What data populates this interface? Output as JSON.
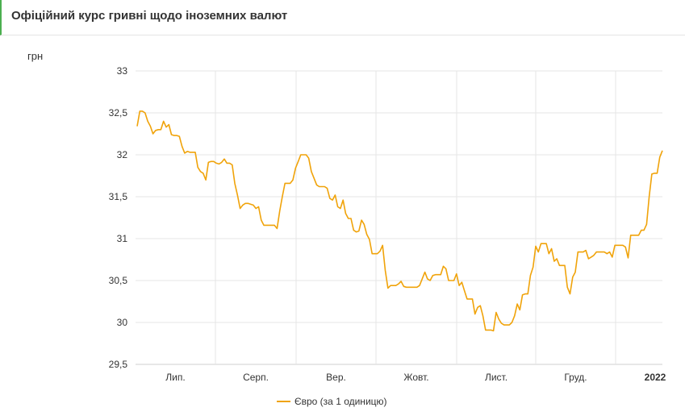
{
  "header": {
    "title": "Офіційний курс гривні щодо іноземних валют"
  },
  "chart_data": {
    "type": "line",
    "y_unit_label": "грн",
    "ylim": [
      29.5,
      33
    ],
    "y_ticks": [
      "29,5",
      "30",
      "30,5",
      "31",
      "31,5",
      "32",
      "32,5",
      "33"
    ],
    "x_ticks": [
      {
        "label": "Лип.",
        "bold": false
      },
      {
        "label": "Серп.",
        "bold": false
      },
      {
        "label": "Вер.",
        "bold": false
      },
      {
        "label": "Жовт.",
        "bold": false
      },
      {
        "label": "Лист.",
        "bold": false
      },
      {
        "label": "Груд.",
        "bold": false
      },
      {
        "label": "2022",
        "bold": true
      }
    ],
    "grid": true,
    "legend_position": "bottom",
    "series": [
      {
        "name": "Євро (за 1 одиницю)",
        "color": "#f0a30a",
        "values": [
          32.34,
          32.52,
          32.52,
          32.5,
          32.4,
          32.34,
          32.25,
          32.29,
          32.3,
          32.3,
          32.4,
          32.33,
          32.36,
          32.24,
          32.23,
          32.23,
          32.22,
          32.1,
          32.02,
          32.04,
          32.03,
          32.03,
          32.03,
          31.85,
          31.8,
          31.78,
          31.7,
          31.91,
          31.92,
          31.92,
          31.9,
          31.89,
          31.91,
          31.95,
          31.9,
          31.9,
          31.88,
          31.66,
          31.52,
          31.36,
          31.4,
          31.42,
          31.42,
          31.41,
          31.4,
          31.36,
          31.38,
          31.22,
          31.16,
          31.16,
          31.16,
          31.16,
          31.16,
          31.12,
          31.33,
          31.5,
          31.66,
          31.66,
          31.66,
          31.7,
          31.84,
          31.92,
          32.0,
          32.0,
          32.0,
          31.96,
          31.8,
          31.72,
          31.64,
          31.62,
          31.62,
          31.62,
          31.6,
          31.48,
          31.46,
          31.52,
          31.38,
          31.36,
          31.46,
          31.3,
          31.24,
          31.24,
          31.1,
          31.08,
          31.09,
          31.22,
          31.17,
          31.05,
          30.99,
          30.82,
          30.82,
          30.82,
          30.85,
          30.92,
          30.62,
          30.41,
          30.44,
          30.44,
          30.44,
          30.46,
          30.49,
          30.43,
          30.42,
          30.42,
          30.42,
          30.42,
          30.42,
          30.44,
          30.52,
          30.6,
          30.52,
          30.5,
          30.56,
          30.57,
          30.57,
          30.57,
          30.67,
          30.64,
          30.5,
          30.5,
          30.5,
          30.58,
          30.44,
          30.48,
          30.38,
          30.28,
          30.28,
          30.28,
          30.1,
          30.18,
          30.2,
          30.08,
          29.91,
          29.91,
          29.91,
          29.9,
          30.12,
          30.04,
          29.99,
          29.97,
          29.97,
          29.97,
          30.0,
          30.08,
          30.22,
          30.15,
          30.33,
          30.34,
          30.34,
          30.56,
          30.66,
          30.91,
          30.84,
          30.94,
          30.94,
          30.94,
          30.82,
          30.88,
          30.73,
          30.76,
          30.68,
          30.68,
          30.68,
          30.42,
          30.34,
          30.54,
          30.6,
          30.84,
          30.84,
          30.84,
          30.86,
          30.76,
          30.78,
          30.8,
          30.84,
          30.84,
          30.84,
          30.84,
          30.82,
          30.84,
          30.78,
          30.92,
          30.92,
          30.92,
          30.92,
          30.9,
          30.77,
          31.04,
          31.04,
          31.04,
          31.04,
          31.1,
          31.1,
          31.17,
          31.5,
          31.77,
          31.78,
          31.78,
          31.97,
          32.05
        ]
      }
    ]
  }
}
